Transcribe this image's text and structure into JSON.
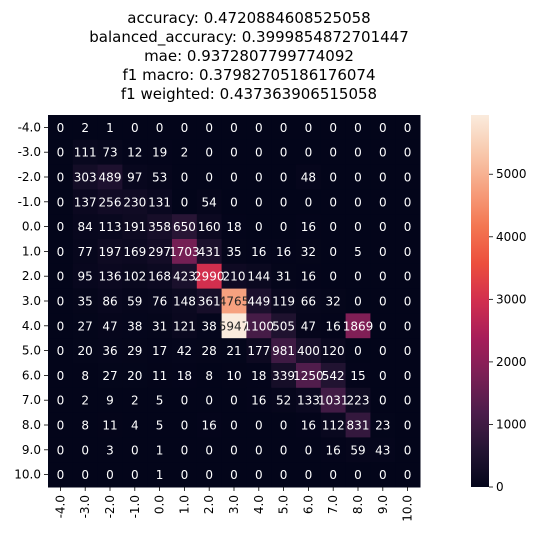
{
  "chart_data": {
    "type": "heatmap",
    "title_lines": [
      "accuracy: 0.4720884608525058",
      "balanced_accuracy: 0.3999854872701447",
      "mae: 0.9372807799774092",
      "f1 macro: 0.37982705186176074",
      "f1 weighted: 0.437363906515058"
    ],
    "row_labels": [
      "-4.0",
      "-3.0",
      "-2.0",
      "-1.0",
      "0.0",
      "1.0",
      "2.0",
      "3.0",
      "4.0",
      "5.0",
      "6.0",
      "7.0",
      "8.0",
      "9.0",
      "10.0"
    ],
    "col_labels": [
      "-4.0",
      "-3.0",
      "-2.0",
      "-1.0",
      "0.0",
      "1.0",
      "2.0",
      "3.0",
      "4.0",
      "5.0",
      "6.0",
      "7.0",
      "8.0",
      "9.0",
      "10.0"
    ],
    "values": [
      [
        0,
        2,
        1,
        0,
        0,
        0,
        0,
        0,
        0,
        0,
        0,
        0,
        0,
        0,
        0
      ],
      [
        0,
        111,
        73,
        12,
        19,
        2,
        0,
        0,
        0,
        0,
        0,
        0,
        0,
        0,
        0
      ],
      [
        0,
        303,
        489,
        97,
        53,
        0,
        0,
        0,
        0,
        0,
        48,
        0,
        0,
        0,
        0
      ],
      [
        0,
        137,
        256,
        230,
        131,
        0,
        54,
        0,
        0,
        0,
        0,
        0,
        0,
        0,
        0
      ],
      [
        0,
        84,
        113,
        191,
        358,
        650,
        160,
        18,
        0,
        0,
        16,
        0,
        0,
        0,
        0
      ],
      [
        0,
        77,
        197,
        169,
        297,
        1703,
        431,
        35,
        16,
        16,
        32,
        0,
        5,
        0,
        0
      ],
      [
        0,
        95,
        136,
        102,
        168,
        423,
        2990,
        210,
        144,
        31,
        16,
        0,
        0,
        0,
        0
      ],
      [
        0,
        35,
        86,
        59,
        76,
        148,
        361,
        4765,
        449,
        119,
        66,
        32,
        0,
        0,
        0
      ],
      [
        0,
        27,
        47,
        38,
        31,
        121,
        38,
        5947,
        1100,
        505,
        47,
        16,
        1869,
        0,
        0
      ],
      [
        0,
        20,
        36,
        29,
        17,
        42,
        28,
        21,
        177,
        981,
        400,
        120,
        0,
        0,
        0
      ],
      [
        0,
        8,
        27,
        20,
        11,
        18,
        8,
        10,
        18,
        339,
        1250,
        542,
        15,
        0,
        0
      ],
      [
        0,
        2,
        9,
        2,
        5,
        0,
        0,
        0,
        16,
        52,
        133,
        1031,
        223,
        0,
        0
      ],
      [
        0,
        8,
        11,
        4,
        5,
        0,
        16,
        0,
        0,
        0,
        16,
        112,
        831,
        23,
        0
      ],
      [
        0,
        0,
        3,
        0,
        1,
        0,
        0,
        0,
        0,
        0,
        0,
        16,
        59,
        43,
        0
      ],
      [
        0,
        0,
        0,
        0,
        1,
        0,
        0,
        0,
        0,
        0,
        0,
        0,
        0,
        0,
        0
      ]
    ],
    "vmin": 0,
    "vmax": 5947,
    "colorbar_ticks": [
      0,
      1000,
      2000,
      3000,
      4000,
      5000
    ],
    "colormap": "rocket",
    "colormap_stops": [
      "#03051a",
      "#241433",
      "#4c1d4b",
      "#7a1f55",
      "#a71d5a",
      "#d12e4e",
      "#ec4e3d",
      "#f37651",
      "#f6a07e",
      "#f8c9ad",
      "#faebdd"
    ],
    "dark_text_color": "#262626",
    "light_text_color": "#ffffff",
    "grid": false
  }
}
